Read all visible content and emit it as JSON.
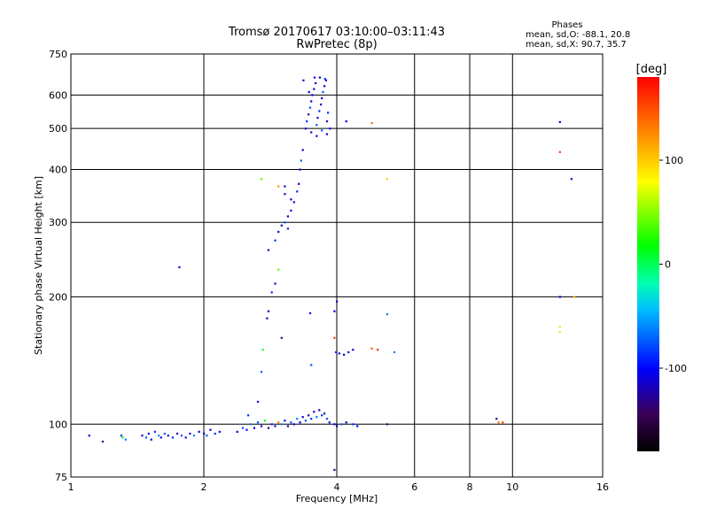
{
  "chart_data": {
    "type": "scatter",
    "title": "Tromsø 20170617 03:10:00–03:11:43",
    "subtitle": "RwPretec (8p)",
    "phases_box": {
      "title": "Phases",
      "line1": "mean, sd,O: -88.1, 20.8",
      "line2": "mean, sd,X:  90.7, 35.7"
    },
    "xlabel": "Frequency [MHz]",
    "ylabel": "Stationary phase Virtual Height [km]",
    "x_scale": "log",
    "y_scale": "log",
    "xlim": [
      1,
      16
    ],
    "ylim": [
      75,
      750
    ],
    "x_ticks": [
      1,
      2,
      4,
      6,
      8,
      10,
      16
    ],
    "x_tick_labels": [
      "1",
      "2",
      "4",
      "6",
      "8",
      "10",
      "16"
    ],
    "y_ticks": [
      75,
      100,
      200,
      300,
      400,
      500,
      600,
      750
    ],
    "y_tick_labels": [
      "75",
      "100",
      "200",
      "300",
      "400",
      "500",
      "600",
      "750"
    ],
    "grid": true,
    "colorbar": {
      "label": "[deg]",
      "min": -180,
      "max": 180,
      "ticks": [
        100,
        0,
        -100
      ],
      "tick_labels": [
        "100",
        "0",
        "-100"
      ],
      "colormap": [
        "#000000",
        "#3a0055",
        "#0000ff",
        "#00c0ff",
        "#00ffb0",
        "#00ff00",
        "#ffff00",
        "#ff8000",
        "#ff0000"
      ]
    },
    "points": [
      [
        1.1,
        94,
        -100
      ],
      [
        1.18,
        91,
        -110
      ],
      [
        1.3,
        94,
        -80
      ],
      [
        1.31,
        93,
        40
      ],
      [
        1.33,
        92,
        -60
      ],
      [
        1.45,
        94,
        -100
      ],
      [
        1.48,
        93,
        -70
      ],
      [
        1.5,
        95,
        -90
      ],
      [
        1.52,
        92,
        -110
      ],
      [
        1.55,
        96,
        -80
      ],
      [
        1.58,
        94,
        -60
      ],
      [
        1.6,
        93,
        -100
      ],
      [
        1.63,
        95,
        -70
      ],
      [
        1.66,
        94,
        -100
      ],
      [
        1.7,
        93,
        -80
      ],
      [
        1.74,
        95,
        -110
      ],
      [
        1.78,
        94,
        -70
      ],
      [
        1.82,
        93,
        -90
      ],
      [
        1.86,
        95,
        -100
      ],
      [
        1.9,
        94,
        -60
      ],
      [
        1.95,
        96,
        -90
      ],
      [
        2.0,
        95,
        -110
      ],
      [
        2.03,
        94,
        -70
      ],
      [
        2.07,
        97,
        -100
      ],
      [
        2.12,
        95,
        -80
      ],
      [
        2.17,
        96,
        -95
      ],
      [
        1.76,
        235,
        -100
      ],
      [
        2.38,
        96,
        -110
      ],
      [
        2.45,
        98,
        -70
      ],
      [
        2.5,
        97,
        -90
      ],
      [
        2.52,
        105,
        -80
      ],
      [
        2.55,
        100,
        -60
      ],
      [
        2.6,
        98,
        -100
      ],
      [
        2.65,
        101,
        -70
      ],
      [
        2.7,
        99,
        -100
      ],
      [
        2.75,
        102,
        50
      ],
      [
        2.8,
        98,
        -110
      ],
      [
        2.85,
        100,
        -80
      ],
      [
        2.9,
        99,
        -100
      ],
      [
        2.95,
        101,
        140
      ],
      [
        3.0,
        100,
        -60
      ],
      [
        3.05,
        102,
        -90
      ],
      [
        3.1,
        99,
        -120
      ],
      [
        3.15,
        101,
        -70
      ],
      [
        3.2,
        100,
        -100
      ],
      [
        3.25,
        103,
        -60
      ],
      [
        3.3,
        101,
        -90
      ],
      [
        3.35,
        104,
        -100
      ],
      [
        3.4,
        102,
        -70
      ],
      [
        3.45,
        105,
        -110
      ],
      [
        3.5,
        103,
        -80
      ],
      [
        3.55,
        107,
        -100
      ],
      [
        3.6,
        104,
        -60
      ],
      [
        3.65,
        108,
        -100
      ],
      [
        3.7,
        105,
        -80
      ],
      [
        3.75,
        106,
        -110
      ],
      [
        3.8,
        103,
        -70
      ],
      [
        3.85,
        101,
        -100
      ],
      [
        3.95,
        100,
        -90
      ],
      [
        4.0,
        99,
        -110
      ],
      [
        4.1,
        100,
        -70
      ],
      [
        4.2,
        101,
        -100
      ],
      [
        4.35,
        100,
        -80
      ],
      [
        4.45,
        99,
        -90
      ],
      [
        5.2,
        100,
        -130
      ],
      [
        3.95,
        78,
        -120
      ],
      [
        2.65,
        113,
        -100
      ],
      [
        2.7,
        133,
        -70
      ],
      [
        2.72,
        150,
        30
      ],
      [
        2.78,
        178,
        -110
      ],
      [
        2.8,
        185,
        -100
      ],
      [
        2.85,
        205,
        -80
      ],
      [
        2.9,
        215,
        -100
      ],
      [
        2.95,
        232,
        60
      ],
      [
        3.0,
        160,
        -120
      ],
      [
        3.48,
        183,
        -100
      ],
      [
        3.5,
        138,
        -70
      ],
      [
        2.8,
        258,
        -100
      ],
      [
        2.9,
        272,
        -80
      ],
      [
        2.95,
        285,
        -100
      ],
      [
        3.0,
        295,
        -110
      ],
      [
        3.05,
        300,
        -70
      ],
      [
        3.1,
        310,
        -100
      ],
      [
        3.15,
        320,
        -90
      ],
      [
        3.2,
        335,
        -100
      ],
      [
        3.25,
        355,
        -80
      ],
      [
        3.28,
        370,
        -110
      ],
      [
        3.3,
        400,
        -100
      ],
      [
        3.32,
        420,
        -70
      ],
      [
        3.35,
        445,
        -100
      ],
      [
        3.05,
        350,
        -100
      ],
      [
        3.1,
        290,
        -80
      ],
      [
        3.15,
        340,
        -110
      ],
      [
        2.7,
        380,
        60
      ],
      [
        2.95,
        365,
        130
      ],
      [
        3.05,
        365,
        -100
      ],
      [
        3.4,
        500,
        -100
      ],
      [
        3.42,
        520,
        -80
      ],
      [
        3.45,
        540,
        -110
      ],
      [
        3.48,
        560,
        -70
      ],
      [
        3.5,
        580,
        -100
      ],
      [
        3.52,
        600,
        -90
      ],
      [
        3.55,
        620,
        -100
      ],
      [
        3.58,
        640,
        -110
      ],
      [
        3.6,
        510,
        -70
      ],
      [
        3.62,
        530,
        -100
      ],
      [
        3.65,
        550,
        -80
      ],
      [
        3.68,
        570,
        -100
      ],
      [
        3.7,
        590,
        -110
      ],
      [
        3.72,
        610,
        -70
      ],
      [
        3.75,
        630,
        -100
      ],
      [
        3.78,
        650,
        -90
      ],
      [
        3.8,
        520,
        -100
      ],
      [
        3.82,
        545,
        -80
      ],
      [
        3.46,
        610,
        -100
      ],
      [
        3.56,
        660,
        -90
      ],
      [
        3.66,
        660,
        -100
      ],
      [
        3.76,
        655,
        -80
      ],
      [
        3.36,
        650,
        -100
      ],
      [
        3.86,
        500,
        -90
      ],
      [
        3.5,
        490,
        -100
      ],
      [
        3.6,
        480,
        -110
      ],
      [
        3.7,
        495,
        -70
      ],
      [
        3.8,
        485,
        -100
      ],
      [
        4.2,
        520,
        -100
      ],
      [
        3.95,
        185,
        -90
      ],
      [
        4.0,
        195,
        -100
      ],
      [
        3.98,
        148,
        -80
      ],
      [
        4.05,
        147,
        -100
      ],
      [
        4.15,
        146,
        -110
      ],
      [
        4.25,
        148,
        -90
      ],
      [
        4.35,
        150,
        -100
      ],
      [
        4.8,
        151,
        150
      ],
      [
        4.95,
        150,
        170
      ],
      [
        5.4,
        148,
        -60
      ],
      [
        5.2,
        182,
        -60
      ],
      [
        3.95,
        160,
        160
      ],
      [
        4.8,
        515,
        140
      ],
      [
        5.2,
        380,
        110
      ],
      [
        9.2,
        103,
        -120
      ],
      [
        9.3,
        101,
        140
      ],
      [
        9.5,
        101,
        160
      ],
      [
        12.8,
        518,
        -110
      ],
      [
        12.8,
        440,
        160
      ],
      [
        12.8,
        165,
        100
      ],
      [
        12.8,
        170,
        100
      ],
      [
        12.8,
        200,
        -100
      ],
      [
        13.6,
        380,
        -110
      ],
      [
        13.8,
        200,
        120
      ]
    ]
  }
}
